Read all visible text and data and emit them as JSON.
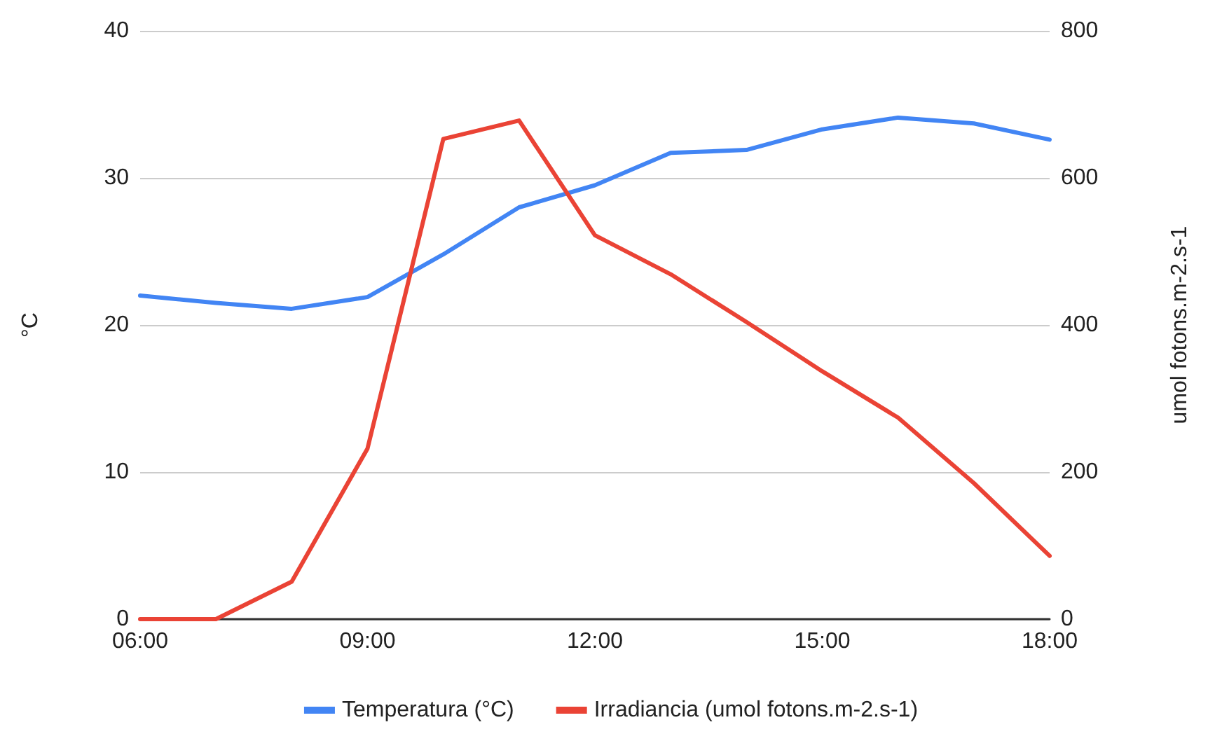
{
  "chart_data": {
    "type": "line",
    "ylabel": "°C",
    "y2label": "umol fotons.m-2.s-1",
    "x": [
      6,
      7,
      8,
      9,
      10,
      11,
      12,
      13,
      14,
      15,
      16,
      17,
      18
    ],
    "series": [
      {
        "name": "Temperatura (°C)",
        "color": "#4285f4",
        "values": [
          22.0,
          21.5,
          21.1,
          21.9,
          24.8,
          28.0,
          29.5,
          31.7,
          31.9,
          33.3,
          34.1,
          33.7,
          32.6
        ]
      },
      {
        "name": "Irradiancia (umol fotons.m-2.s-1)",
        "color": "#ea4335",
        "axis": "y2",
        "values": [
          0,
          0,
          51,
          232,
          653,
          678,
          522,
          469,
          404,
          337,
          274,
          185,
          86
        ]
      }
    ],
    "xlim": [
      6,
      18
    ],
    "xticks": [
      {
        "value": 6,
        "label": "06:00"
      },
      {
        "value": 9,
        "label": "09:00"
      },
      {
        "value": 12,
        "label": "12:00"
      },
      {
        "value": 15,
        "label": "15:00"
      },
      {
        "value": 18,
        "label": "18:00"
      }
    ],
    "ylim": [
      0,
      40
    ],
    "yticks": [
      0,
      10,
      20,
      30,
      40
    ],
    "y2lim": [
      0,
      800
    ],
    "y2ticks": [
      0,
      200,
      400,
      600,
      800
    ],
    "grid": "y",
    "legend": "bottom",
    "marker": "none",
    "line_style": "solid"
  }
}
